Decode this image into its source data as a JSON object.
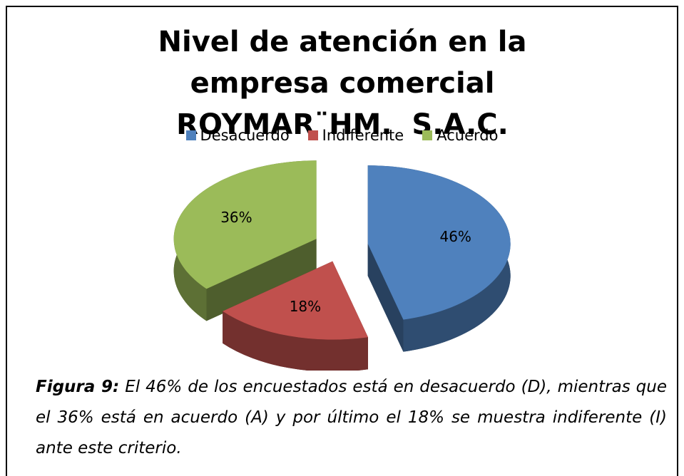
{
  "chart_data": {
    "type": "pie3d",
    "title": "Nivel de atención en la empresa comercial ROYMAR¨HM.  S.A.C.",
    "categories": [
      "Desacuerdo",
      "Indiferente",
      "Acuerdo"
    ],
    "values": [
      46,
      18,
      36
    ],
    "value_labels": [
      "46%",
      "18%",
      "36%"
    ],
    "colors": [
      "#4f81bd",
      "#c0504d",
      "#9bbb59"
    ],
    "caption_label": "Figura 9:",
    "caption": "El 46% de los encuestados está en desacuerdo (D), mientras que el 36% está en acuerdo (A) y por último el 18% se muestra indiferente (I) ante este criterio."
  }
}
